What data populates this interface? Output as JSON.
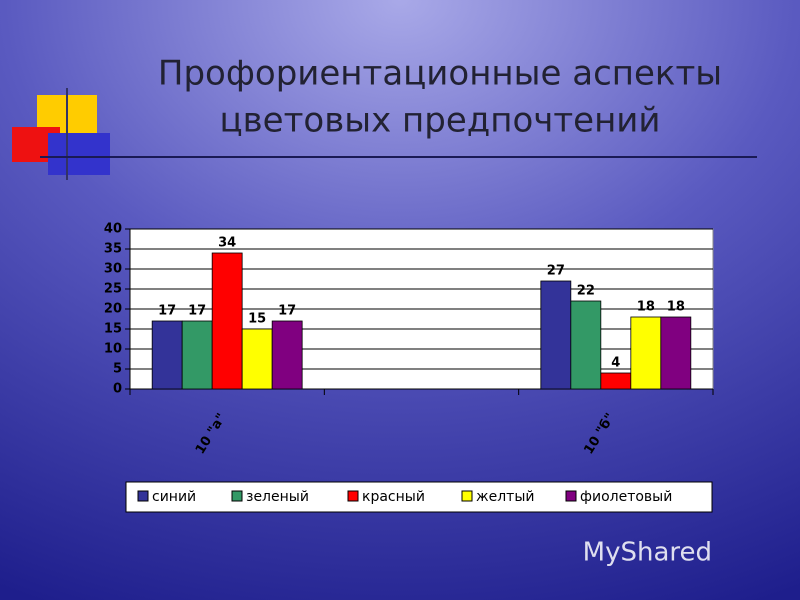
{
  "title_lines": [
    "Профориентационные аспекты",
    "цветовых предпочтений"
  ],
  "watermark": "MyShared",
  "chart_data": {
    "type": "bar",
    "categories": [
      "10 \"а\"",
      null,
      "10 \"б\""
    ],
    "series": [
      {
        "name": "синий",
        "color": "#333399",
        "values": [
          17,
          null,
          27
        ]
      },
      {
        "name": "зеленый",
        "color": "#339966",
        "values": [
          17,
          null,
          22
        ]
      },
      {
        "name": "красный",
        "color": "#ff0000",
        "values": [
          34,
          null,
          4
        ]
      },
      {
        "name": "желтый",
        "color": "#ffff00",
        "values": [
          15,
          null,
          18
        ]
      },
      {
        "name": "фиолетовый",
        "color": "#800080",
        "values": [
          17,
          null,
          18
        ]
      }
    ],
    "ylim": [
      0,
      40
    ],
    "yticks": [
      0,
      5,
      10,
      15,
      20,
      25,
      30,
      35,
      40
    ],
    "grid": true,
    "legend": "bottom"
  }
}
